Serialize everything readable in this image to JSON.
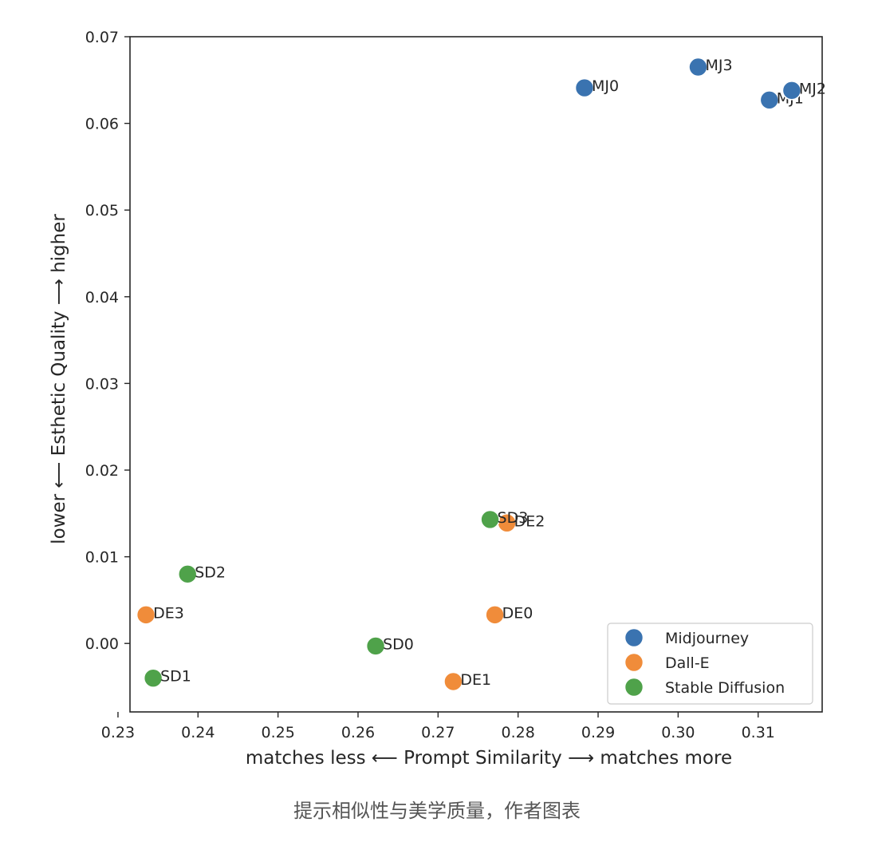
{
  "chart_data": {
    "type": "scatter",
    "xlabel": "matches less ⟵ Prompt Similarity ⟶ matches more",
    "ylabel": "lower ⟵ Esthetic Quality ⟶ higher",
    "xlim": [
      0.2315,
      0.318
    ],
    "ylim": [
      -0.0079,
      0.07
    ],
    "xticks": [
      0.23,
      0.24,
      0.25,
      0.26,
      0.27,
      0.28,
      0.29,
      0.3,
      0.31
    ],
    "xtick_labels": [
      "0.23",
      "0.24",
      "0.25",
      "0.26",
      "0.27",
      "0.28",
      "0.29",
      "0.30",
      "0.31"
    ],
    "yticks": [
      0.0,
      0.01,
      0.02,
      0.03,
      0.04,
      0.05,
      0.06,
      0.07
    ],
    "ytick_labels": [
      "0.00",
      "0.01",
      "0.02",
      "0.03",
      "0.04",
      "0.05",
      "0.06",
      "0.07"
    ],
    "grid": false,
    "legend_position": "bottom-right",
    "series": [
      {
        "name": "Midjourney",
        "color": "#3a73b0",
        "points": [
          {
            "label": "MJ0",
            "x": 0.2883,
            "y": 0.0641
          },
          {
            "label": "MJ1",
            "x": 0.3114,
            "y": 0.0627
          },
          {
            "label": "MJ2",
            "x": 0.3142,
            "y": 0.0638
          },
          {
            "label": "MJ3",
            "x": 0.3025,
            "y": 0.0665
          }
        ]
      },
      {
        "name": "Dall-E",
        "color": "#f08c3a",
        "points": [
          {
            "label": "DE0",
            "x": 0.2771,
            "y": 0.0033
          },
          {
            "label": "DE1",
            "x": 0.2719,
            "y": -0.0044
          },
          {
            "label": "DE2",
            "x": 0.2786,
            "y": 0.0139
          },
          {
            "label": "DE3",
            "x": 0.2335,
            "y": 0.0033
          }
        ]
      },
      {
        "name": "Stable Diffusion",
        "color": "#4fa24a",
        "points": [
          {
            "label": "SD0",
            "x": 0.2622,
            "y": -0.0003
          },
          {
            "label": "SD1",
            "x": 0.2344,
            "y": -0.004
          },
          {
            "label": "SD2",
            "x": 0.2387,
            "y": 0.008
          },
          {
            "label": "SD3",
            "x": 0.2765,
            "y": 0.0143
          }
        ]
      }
    ]
  },
  "caption": "提示相似性与美学质量，作者图表"
}
